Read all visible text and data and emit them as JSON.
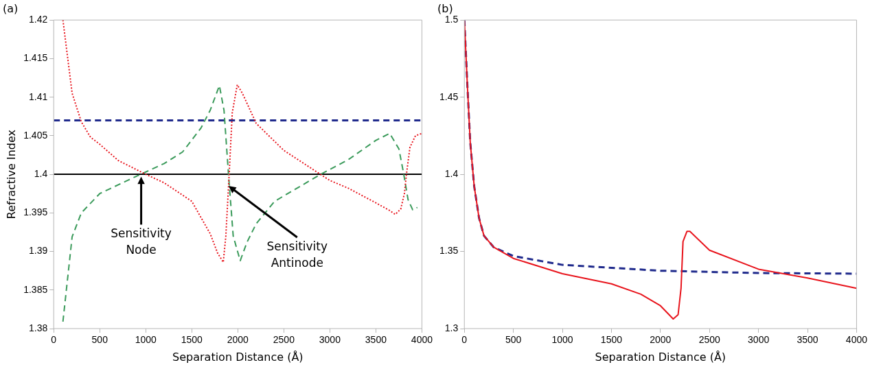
{
  "chart_data": [
    {
      "type": "line",
      "title": "(a)",
      "xlabel": "Separation Distance (Å)",
      "ylabel": "Refractive Index",
      "xlim": [
        0,
        4000
      ],
      "xticks": [
        0,
        500,
        1000,
        1500,
        2000,
        2500,
        3000,
        3500,
        4000
      ],
      "ylim": [
        1.38,
        1.42
      ],
      "yticks": [
        1.38,
        1.385,
        1.39,
        1.395,
        1.4,
        1.405,
        1.41,
        1.415,
        1.42
      ],
      "grid": false,
      "legend": false,
      "marker": "none",
      "ref_lines": [
        {
          "axis": "y",
          "value": 1.4,
          "color": "#000000",
          "line_style": "solid"
        }
      ],
      "annotations": [
        {
          "text": "Sensitivity\nNode",
          "x": 950,
          "y": 1.3997
        },
        {
          "text": "Sensitivity\nAntinode",
          "x": 1899,
          "y": 1.3985
        }
      ],
      "series": [
        {
          "color": "#e8141c",
          "line_style": "dotted",
          "x": [
            100,
            200,
            300,
            400,
            500,
            700,
            1000,
            1200,
            1500,
            1700,
            1780,
            1842,
            1870,
            1906,
            1940,
            1994,
            2050,
            2200,
            2500,
            2897,
            3000,
            3200,
            3500,
            3650,
            3710,
            3770,
            3810,
            3832,
            3870,
            3930,
            4000
          ],
          "values": [
            1.42,
            1.4105,
            1.4068,
            1.4048,
            1.4039,
            1.4018,
            1.4,
            1.3989,
            1.3965,
            1.3923,
            1.3898,
            1.3886,
            1.392,
            1.4,
            1.408,
            1.4116,
            1.4105,
            1.4066,
            1.4031,
            1.4,
            1.3992,
            1.3982,
            1.3963,
            1.3953,
            1.3948,
            1.3955,
            1.3975,
            1.4,
            1.4035,
            1.405,
            1.4053
          ]
        },
        {
          "color": "#3a9a5a",
          "line_style": "dashed",
          "x": [
            100,
            200,
            300,
            500,
            800,
            1000,
            1200,
            1400,
            1600,
            1700,
            1800,
            1850,
            1900,
            1950,
            2026,
            2100,
            2200,
            2400,
            2700,
            2900,
            3200,
            3500,
            3650,
            3750,
            3800,
            3850,
            3900,
            3950
          ],
          "values": [
            1.3809,
            1.3919,
            1.395,
            1.3975,
            1.3992,
            1.4003,
            1.4014,
            1.4029,
            1.406,
            1.4083,
            1.4115,
            1.4083,
            1.3998,
            1.392,
            1.3888,
            1.3912,
            1.3936,
            1.3965,
            1.3986,
            1.4,
            1.4019,
            1.4044,
            1.4053,
            1.4033,
            1.4002,
            1.3967,
            1.3954,
            1.3957
          ]
        },
        {
          "color": "#1f2a8c",
          "line_style": "dashed",
          "x": [
            0,
            4000
          ],
          "values": [
            1.407,
            1.407
          ]
        }
      ]
    },
    {
      "type": "line",
      "title": "(b)",
      "xlabel": "Separation Distance (Å)",
      "xlim": [
        0,
        4000
      ],
      "xticks": [
        0,
        500,
        1000,
        1500,
        2000,
        2500,
        3000,
        3500,
        4000
      ],
      "ylim": [
        1.3,
        1.5
      ],
      "yticks": [
        1.3,
        1.35,
        1.4,
        1.45,
        1.5
      ],
      "grid": false,
      "legend": false,
      "marker": "none",
      "series": [
        {
          "color": "#e8141c",
          "line_style": "solid",
          "x": [
            0,
            30,
            60,
            100,
            150,
            200,
            300,
            500,
            1000,
            1500,
            1800,
            2000,
            2130,
            2180,
            2210,
            2230,
            2270,
            2300,
            2500,
            3000,
            3500,
            4000
          ],
          "values": [
            1.5,
            1.4587,
            1.4208,
            1.3924,
            1.3716,
            1.3602,
            1.3527,
            1.3455,
            1.3356,
            1.329,
            1.3223,
            1.3148,
            1.3062,
            1.309,
            1.3262,
            1.3564,
            1.363,
            1.363,
            1.3508,
            1.3385,
            1.3328,
            1.3261
          ]
        },
        {
          "color": "#1f2a8c",
          "line_style": "dashed",
          "x": [
            0,
            30,
            60,
            100,
            150,
            200,
            300,
            500,
            1000,
            2000,
            3000,
            4000
          ],
          "values": [
            1.5,
            1.4587,
            1.4208,
            1.3924,
            1.3716,
            1.3602,
            1.3527,
            1.347,
            1.3413,
            1.3375,
            1.336,
            1.3356
          ]
        }
      ]
    }
  ]
}
